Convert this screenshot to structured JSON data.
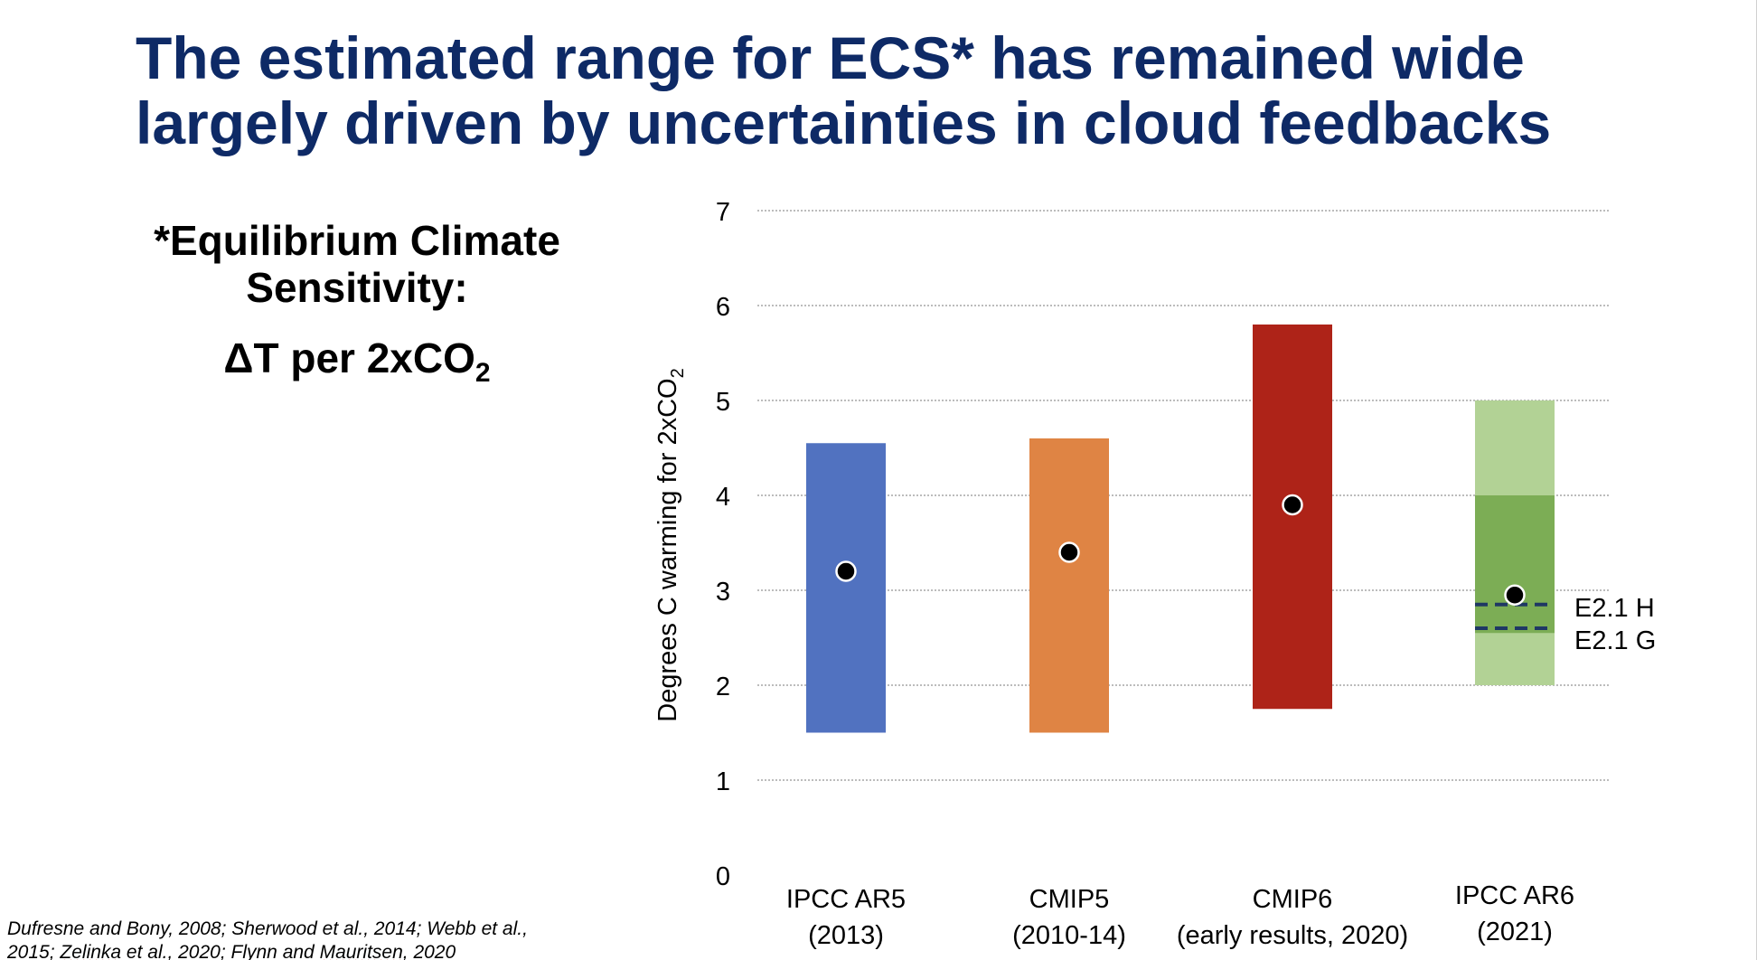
{
  "slide": {
    "title_line1": "The estimated range for ECS* has remained wide",
    "title_line2": "largely driven by uncertainties in cloud feedbacks",
    "definition_line1": "*Equilibrium Climate",
    "definition_line2": "Sensitivity:",
    "formula_main": "ΔT per 2xCO",
    "formula_sub": "2",
    "citation_part1": "Dufresne and Bony, 2008; Sherwood et al., 2014; Webb et al., 2015; ",
    "citation_name1": "Zelinka",
    "citation_part2": " et al., 2020; Flynn and ",
    "citation_name2": "Mauritsen",
    "citation_part3": ", 2020",
    "title_color": "#0e2a66"
  },
  "chart_data": {
    "type": "bar",
    "subtype": "floating range bars with central estimate markers",
    "title": "",
    "xlabel": "",
    "ylabel_main": "Degrees C warming for 2xCO",
    "ylabel_sub": "2",
    "ylim": [
      0,
      7
    ],
    "yticks": [
      0,
      1,
      2,
      3,
      4,
      5,
      6,
      7
    ],
    "grid": true,
    "legend": "none",
    "categories": [
      {
        "label_line1": "IPCC AR5",
        "label_line2": "(2013)"
      },
      {
        "label_line1": "CMIP5",
        "label_line2": "(2010-14)"
      },
      {
        "label_line1": "CMIP6",
        "label_line2": "(early results, 2020)"
      },
      {
        "label_line1": "IPCC AR6",
        "label_line2": "(2021)"
      }
    ],
    "ranges": [
      {
        "category": "IPCC AR5",
        "low": 1.5,
        "high": 4.55,
        "central": 3.2,
        "color": "#5172c0"
      },
      {
        "category": "CMIP5",
        "low": 1.5,
        "high": 4.6,
        "central": 3.4,
        "color": "#df8444"
      },
      {
        "category": "CMIP6",
        "low": 1.75,
        "high": 5.8,
        "central": 3.9,
        "color": "#ae2318"
      },
      {
        "category": "IPCC AR6",
        "low": 2.0,
        "high": 5.0,
        "likely_low": 2.55,
        "likely_high": 4.0,
        "central": 2.95,
        "color": "#b2d295",
        "likely_color": "#7cad55"
      }
    ],
    "reference_lines": [
      {
        "label": "E2.1 H",
        "value": 2.85,
        "color": "#1f3864",
        "category": "IPCC AR6"
      },
      {
        "label": "E2.1 G",
        "value": 2.6,
        "color": "#1f3864",
        "category": "IPCC AR6"
      }
    ]
  }
}
